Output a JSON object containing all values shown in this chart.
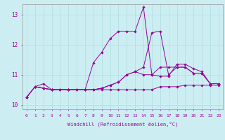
{
  "xlabel": "Windchill (Refroidissement éolien,°C)",
  "background_color": "#cceef2",
  "grid_color": "#aadddd",
  "line_color": "#990099",
  "xlim": [
    -0.5,
    23.5
  ],
  "ylim": [
    9.85,
    13.35
  ],
  "xticks": [
    0,
    1,
    2,
    3,
    4,
    5,
    6,
    7,
    8,
    9,
    10,
    11,
    12,
    13,
    14,
    15,
    16,
    17,
    18,
    19,
    20,
    21,
    22,
    23
  ],
  "yticks": [
    10,
    11,
    12,
    13
  ],
  "series": [
    [
      10.25,
      10.6,
      10.7,
      10.5,
      10.5,
      10.5,
      10.5,
      10.5,
      11.4,
      11.75,
      12.2,
      12.45,
      12.45,
      12.45,
      13.25,
      11.0,
      10.95,
      10.95,
      11.35,
      11.35,
      11.2,
      11.1,
      10.7,
      10.7
    ],
    [
      10.25,
      10.6,
      10.55,
      10.5,
      10.5,
      10.5,
      10.5,
      10.5,
      10.5,
      10.5,
      10.5,
      10.5,
      10.5,
      10.5,
      10.5,
      10.5,
      10.6,
      10.6,
      10.6,
      10.65,
      10.65,
      10.65,
      10.65,
      10.65
    ],
    [
      10.25,
      10.6,
      10.55,
      10.5,
      10.5,
      10.5,
      10.5,
      10.5,
      10.5,
      10.55,
      10.65,
      10.75,
      11.0,
      11.1,
      11.0,
      11.0,
      11.25,
      11.25,
      11.25,
      11.25,
      11.05,
      11.05,
      10.7,
      10.7
    ],
    [
      10.25,
      10.6,
      10.55,
      10.5,
      10.5,
      10.5,
      10.5,
      10.5,
      10.5,
      10.55,
      10.65,
      10.75,
      11.0,
      11.1,
      11.25,
      12.4,
      12.45,
      11.0,
      11.25,
      11.25,
      11.05,
      11.05,
      10.7,
      10.7
    ]
  ]
}
